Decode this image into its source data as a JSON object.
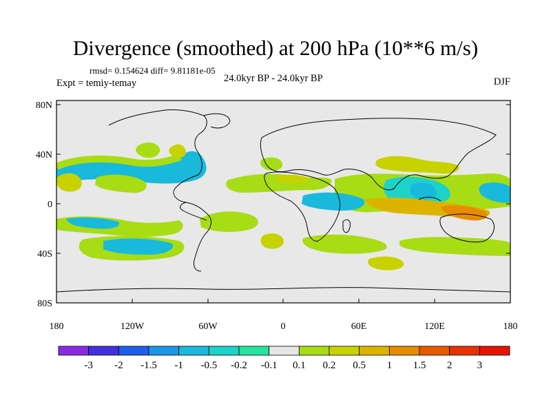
{
  "title": "Divergence (smoothed) at 200 hPa (10**6 m/s)",
  "stats": "rmsd= 0.154624 diff= 9.81181e-05",
  "expt": "Expt = temiy-temay",
  "period": "24.0kyr BP - 24.0kyr BP",
  "season": "DJF",
  "lat_ticks": [
    "80N",
    "40N",
    "0",
    "40S",
    "80S"
  ],
  "lon_ticks": [
    "180",
    "120W",
    "60W",
    "0",
    "60E",
    "120E",
    "180"
  ],
  "colorbar": {
    "labels": [
      "-3",
      "-2",
      "-1.5",
      "-1",
      "-0.5",
      "-0.2",
      "-0.1",
      "0.1",
      "0.2",
      "0.5",
      "1",
      "1.5",
      "2",
      "3"
    ],
    "colors": [
      "#8a2be2",
      "#4430e0",
      "#1f5ee8",
      "#1e96e6",
      "#19b9dc",
      "#1ed2c8",
      "#27e3a0",
      "#e6e6e6",
      "#a8dc14",
      "#c8d200",
      "#dcb400",
      "#e68c00",
      "#e65a00",
      "#e63200",
      "#e61400"
    ]
  },
  "colors": {
    "background": "#e8e8e8",
    "neutral": "#e6e6e6",
    "cyan": "#19b9dc",
    "teal": "#1ed2c8",
    "green": "#a8dc14",
    "yellow": "#c8d200",
    "orange": "#dcb400",
    "dark_orange": "#e68c00",
    "coast": "#000000"
  }
}
